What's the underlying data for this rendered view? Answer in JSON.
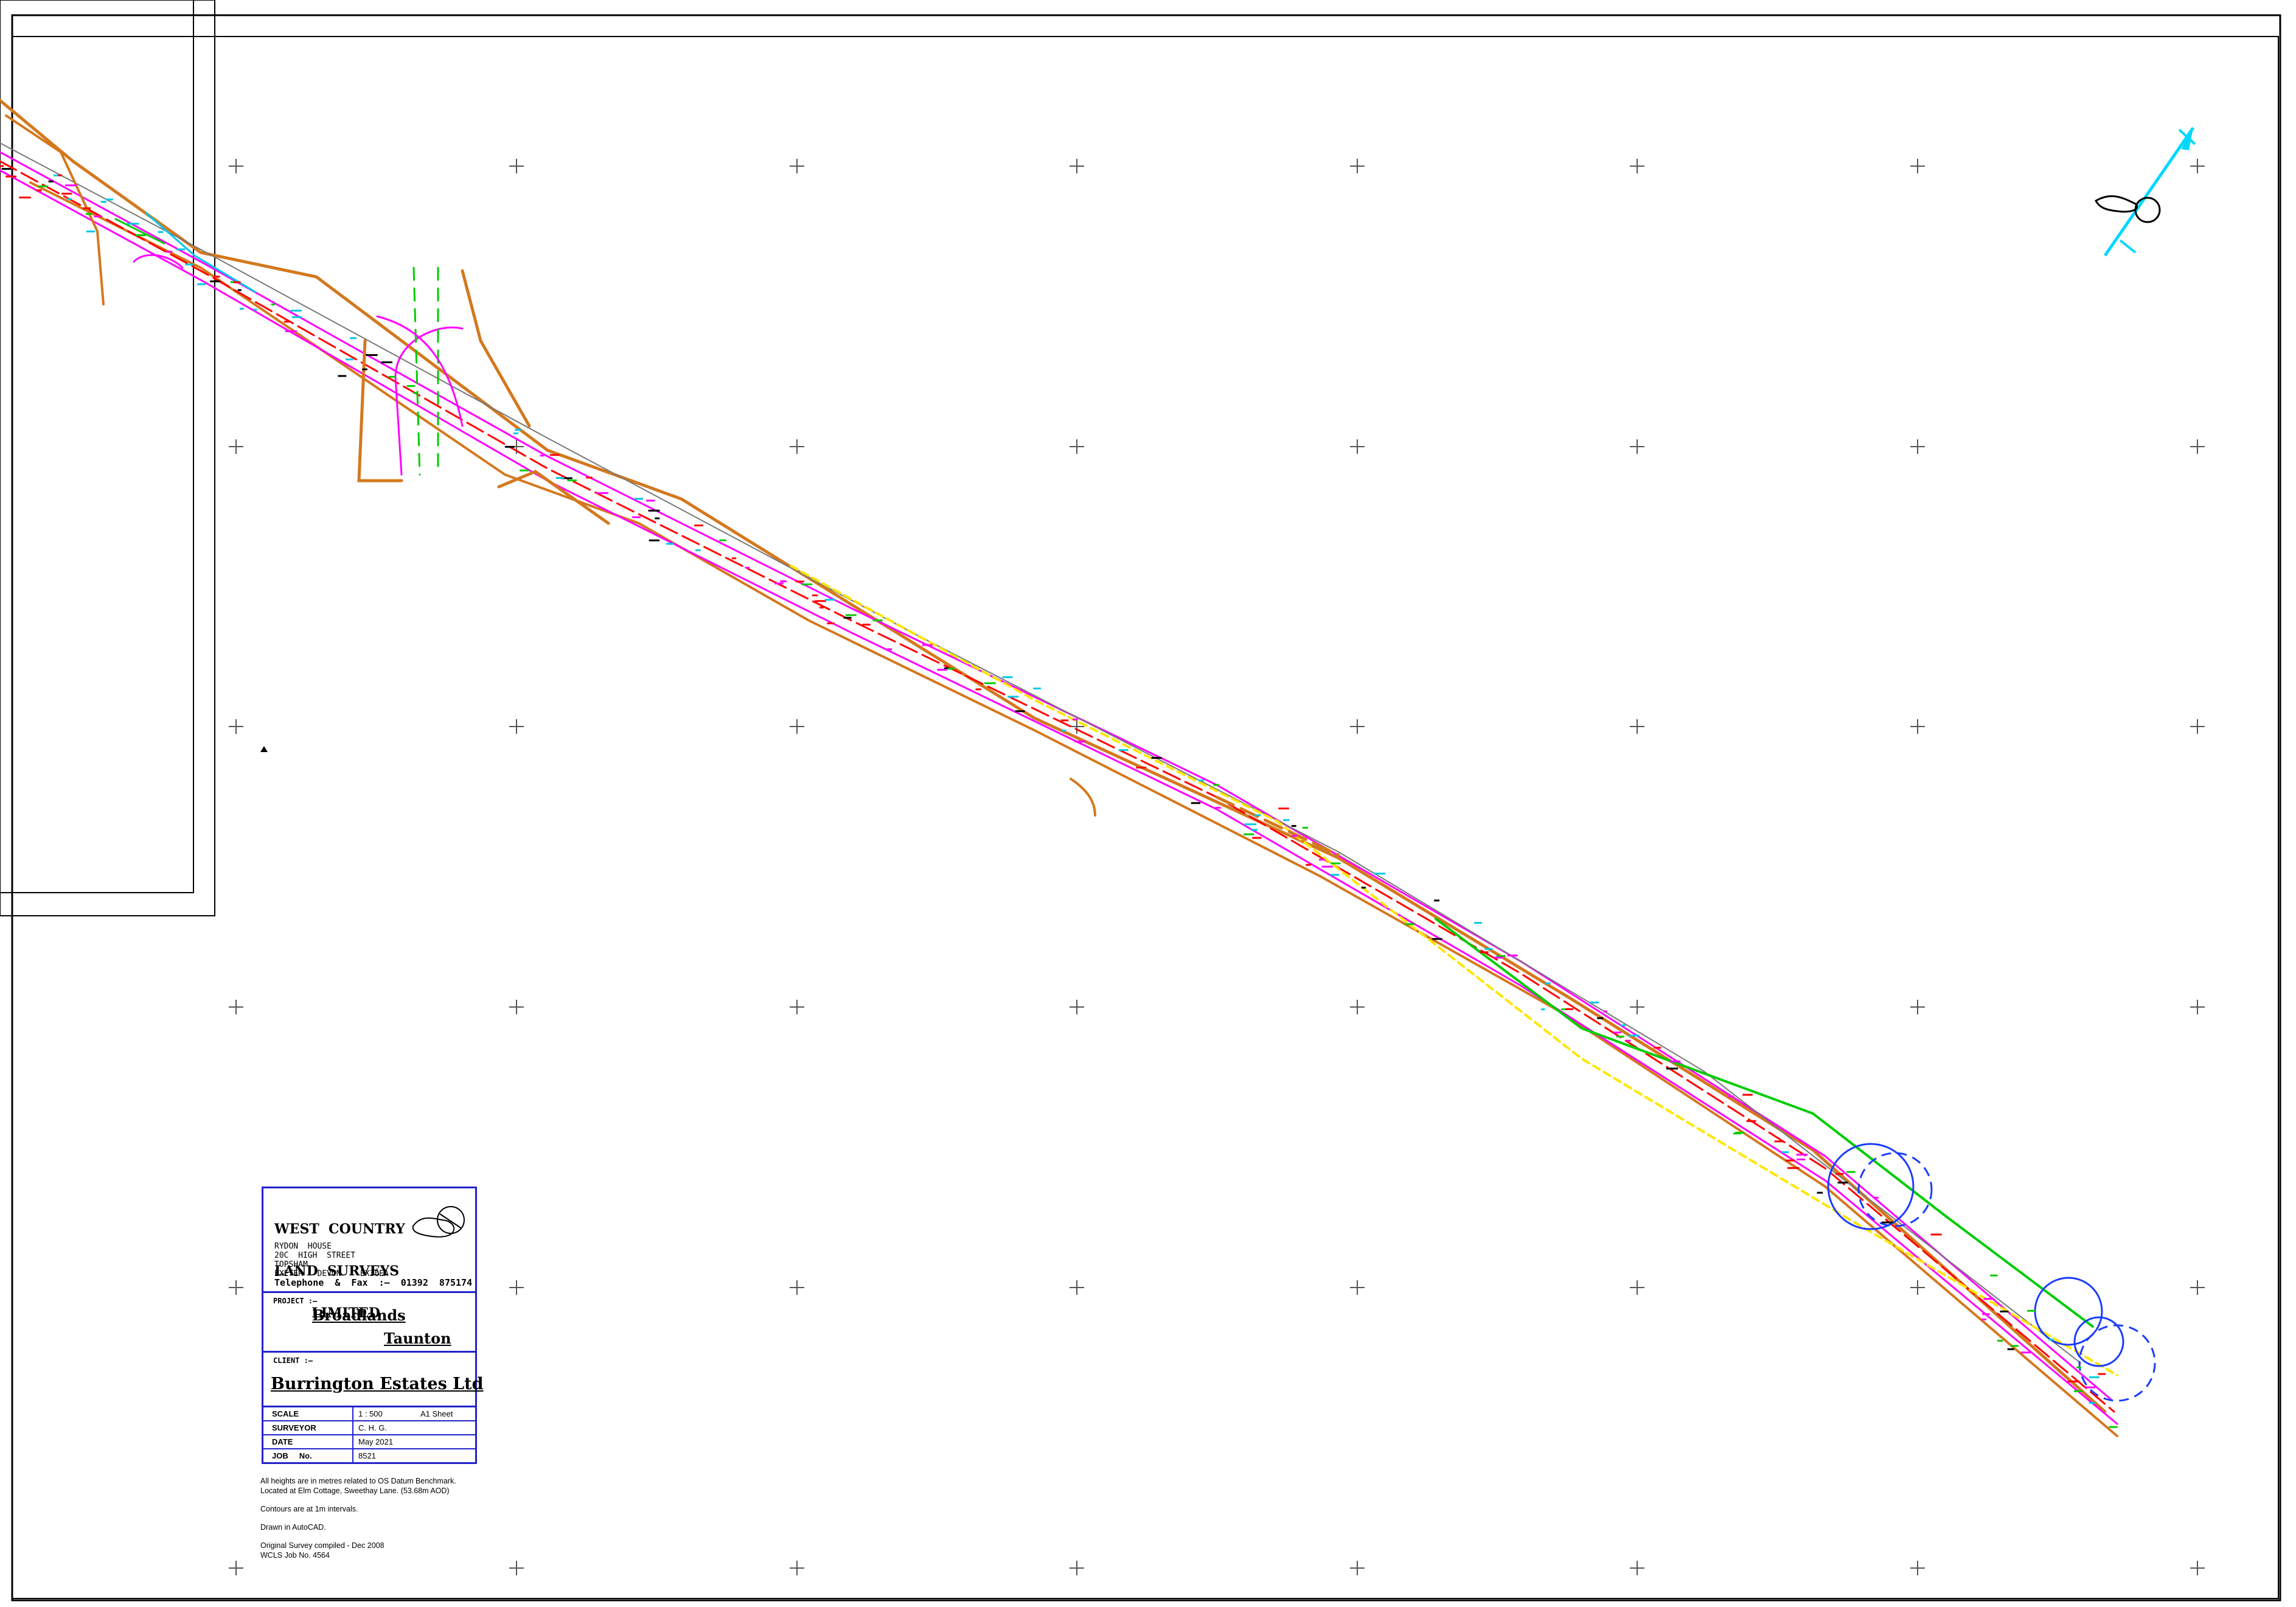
{
  "sheet": {
    "company_name_lines": [
      "WEST  COUNTRY",
      "LAND  SURVEYS",
      "        LIMITED"
    ],
    "address_lines": [
      "RYDON  HOUSE",
      "20C  HIGH  STREET",
      "TOPSHAM",
      "EXETER   DEVON    EX30EA"
    ],
    "telephone": "Telephone  &  Fax  :—  01392  875174",
    "project_label": "PROJECT  :—",
    "project_line_1": "Broadlands",
    "project_line_2": "Taunton",
    "client_label": "CLIENT  :—",
    "client_value": "Burrington  Estates  Ltd",
    "rows": [
      {
        "key": "SCALE",
        "value": "1 : 500",
        "extra": "A1 Sheet"
      },
      {
        "key": "SURVEYOR",
        "value": "C.  H.  G.",
        "extra": ""
      },
      {
        "key": "DATE",
        "value": "May 2021",
        "extra": ""
      },
      {
        "key": "JOB     No.",
        "value": "8521",
        "extra": ""
      }
    ]
  },
  "notes": {
    "heights_1": "All heights are in metres related to OS Datum Benchmark.",
    "heights_2": "Located at Elm Cottage, Sweethay Lane. (53.68m AOD)",
    "contours": "Contours are at 1m intervals.",
    "drawn": "Drawn in AutoCAD.",
    "original_1": "Original Survey compiled - Dec 2008",
    "original_2": "WCLS Job No. 4564"
  },
  "colors": {
    "frame": "#000000",
    "title_block_border": "#2222cc",
    "kerb": "#d4781e",
    "road_edge": "#ff00ff",
    "centreline": "#ff0000",
    "verge": "#00cc00",
    "annotation": "#00c8e6",
    "tree_canopy": "#1a3cff",
    "ditch": "#ffe600",
    "grid_cross": "#555555",
    "north_arrow": "#00d8ff"
  },
  "icons": {
    "north_arrow": "north-arrow-icon",
    "company_logo": "devon-map-logo-icon",
    "benchmark": "benchmark-triangle-icon"
  }
}
